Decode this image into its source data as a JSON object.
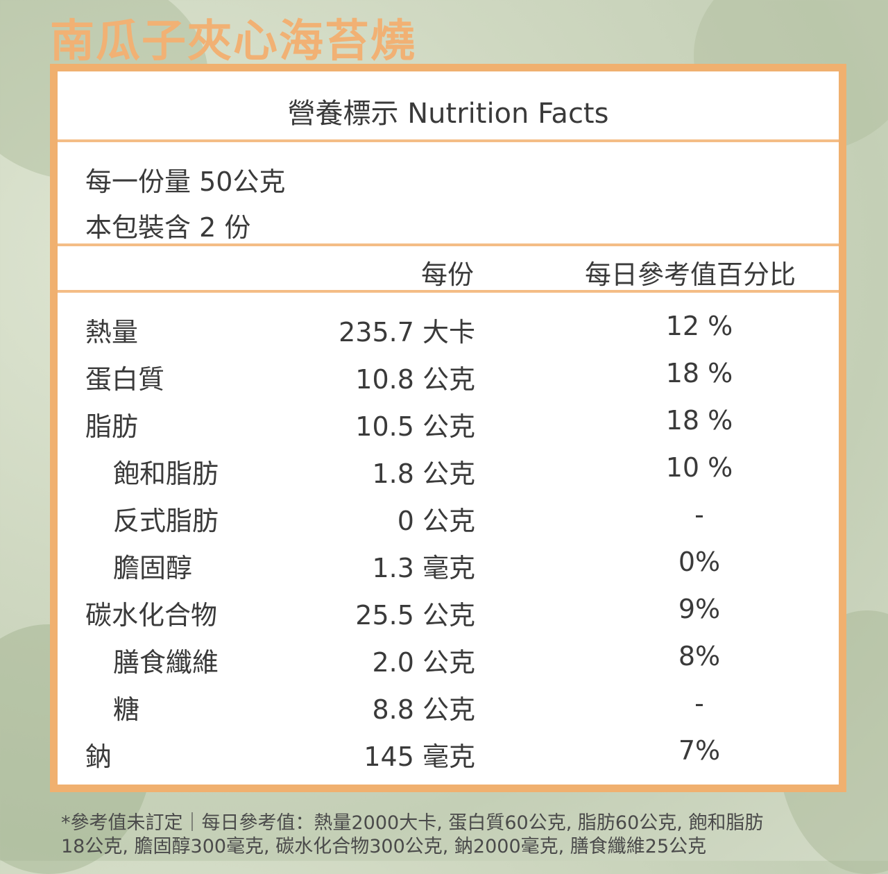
{
  "product_title": "南瓜子夾心海苔燒",
  "label": {
    "heading": "營養標示 Nutrition Facts",
    "serving_size": "每一份量 50公克",
    "servings_per_package": "本包裝含 2 份",
    "col_per_serving": "每份",
    "col_daily_value": "每日參考值百分比"
  },
  "rows": [
    {
      "name": "熱量",
      "amount": "235.7 大卡",
      "pct": "12 %",
      "indent": false
    },
    {
      "name": "蛋白質",
      "amount": "10.8 公克",
      "pct": "18 %",
      "indent": false
    },
    {
      "name": "脂肪",
      "amount": "10.5 公克",
      "pct": "18 %",
      "indent": false
    },
    {
      "name": "飽和脂肪",
      "amount": "1.8 公克",
      "pct": "10 %",
      "indent": true
    },
    {
      "name": "反式脂肪",
      "amount": "0 公克",
      "pct": "-",
      "indent": true
    },
    {
      "name": "膽固醇",
      "amount": "1.3 毫克",
      "pct": "0%",
      "indent": true
    },
    {
      "name": "碳水化合物",
      "amount": "25.5 公克",
      "pct": "9%",
      "indent": false
    },
    {
      "name": "膳食纖維",
      "amount": "2.0 公克",
      "pct": "8%",
      "indent": true
    },
    {
      "name": "糖",
      "amount": "8.8 公克",
      "pct": "-",
      "indent": true
    },
    {
      "name": "鈉",
      "amount": "145 毫克",
      "pct": "7%",
      "indent": false
    }
  ],
  "footnote_line1": "*參考值未訂定｜每日參考值：熱量2000大卡, 蛋白質60公克, 脂肪60公克, 飽和脂肪",
  "footnote_line2": "18公克, 膽固醇300毫克, 碳水化合物300公克, 鈉2000毫克, 膳食纖維25公克",
  "colors": {
    "accent": "#f0b06f",
    "title": "#f1b174",
    "text": "#3a3a3a"
  }
}
